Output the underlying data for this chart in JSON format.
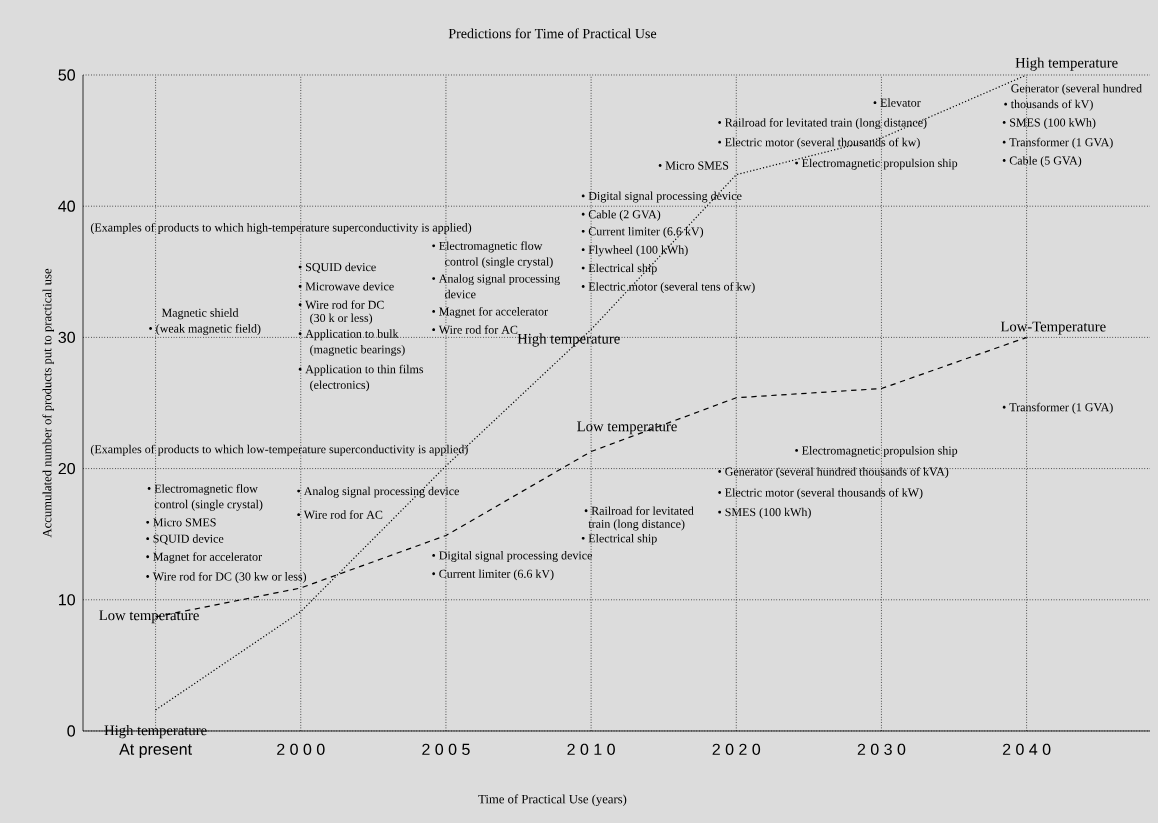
{
  "chart_data": {
    "type": "line",
    "title": "Predictions for Time of Practical Use",
    "xlabel": "Time of Practical Use (years)",
    "ylabel": "Accumulated number of products put to practical use",
    "categories": [
      "At present",
      "2 0 0 0",
      "2 0 0 5",
      "2 0 1 0",
      "2 0 2 0",
      "2 0 3 0",
      "2 0 4 0"
    ],
    "ylim": [
      0,
      50
    ],
    "yticks": [
      0,
      10,
      20,
      30,
      40,
      50
    ],
    "grid": true,
    "series": [
      {
        "name": "High temperature",
        "color": "#000000",
        "line_style": "dotted",
        "values": [
          1.6,
          9.1,
          20.2,
          30.6,
          42.4,
          45.2,
          50
        ]
      },
      {
        "name": "Low-Temperature",
        "color": "#000000",
        "line_style": "dashed",
        "values": [
          8.7,
          10.9,
          14.9,
          21.3,
          25.4,
          26.1,
          30
        ]
      }
    ],
    "annotations": [
      "High temperature",
      "Low temperature",
      "High temperature",
      "Low temperature",
      "(Examples of products to which high-temperature superconductivity is applied)",
      "(Examples of products to which low-temperature superconductivity is applied)",
      "Magnetic shield",
      "• (weak magnetic field)",
      "• SQUID device",
      "• Microwave device",
      "• Wire rod for DC",
      "(30 k or less)",
      "• Application to bulk",
      "(magnetic bearings)",
      "• Application to thin films",
      "(electronics)",
      "• Electromagnetic flow",
      "control (single crystal)",
      "• Analog signal processing",
      "device",
      "• Magnet for accelerator",
      "• Wire rod for AC",
      "• Digital signal processing device",
      "• Cable (2 GVA)",
      "• Current limiter (6.6 kV)",
      "• Flywheel (100 kWh)",
      "• Electrical ship",
      "• Electric motor (several tens of kw)",
      "• Micro SMES",
      "• Railroad for levitated train (long distance)",
      "• Electric motor (several thousands of kw)",
      "• Electromagnetic propulsion ship",
      "• Elevator",
      "Generator (several hundred",
      "• thousands of kV)",
      "• SMES (100 kWh)",
      "• Transformer (1 GVA)",
      "• Cable (5 GVA)",
      "• Electromagnetic flow",
      "control (single crystal)",
      "• Micro SMES",
      "• SQUID device",
      "• Magnet for accelerator",
      "• Wire rod for DC (30 kw or less)",
      "• Analog signal processing device",
      "• Wire rod for AC",
      "• Digital signal processing device",
      "• Current limiter (6.6 kV)",
      "• Railroad for levitated",
      "train (long distance)",
      "• Electrical ship",
      "• Electromagnetic propulsion ship",
      "• Generator (several hundred thousands of kVA)",
      "• Electric motor (several thousands of kW)",
      "• SMES (100 kWh)",
      "• Transformer (1 GVA)"
    ]
  }
}
